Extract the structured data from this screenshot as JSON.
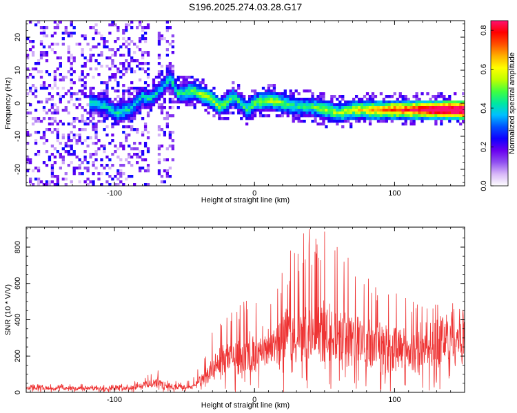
{
  "title": "S196.2025.274.03.28.G17",
  "chart_data": [
    {
      "type": "heatmap",
      "name": "spectrogram",
      "xlabel": "Height of straight line (km)",
      "ylabel": "Frequency (Hz)",
      "xlim": [
        -163,
        150
      ],
      "ylim": [
        -25,
        25
      ],
      "xticks": [
        -100,
        0,
        100
      ],
      "xtick_labels": [
        "-100",
        "0",
        "100"
      ],
      "yticks": [
        -20,
        -10,
        0,
        10,
        20
      ],
      "ytick_labels": [
        "-20",
        "-10",
        "0",
        "10",
        "20"
      ],
      "colorbar": {
        "label": "Normalized spectral amplitude",
        "range": [
          0,
          0.85
        ],
        "ticks": [
          0.0,
          0.2,
          0.4,
          0.6,
          0.8
        ],
        "tick_labels": [
          "0.0",
          "0.2",
          "0.4",
          "0.6",
          "0.8"
        ],
        "colormap": [
          "#ffffff",
          "#d8b8f8",
          "#9050f0",
          "#6a00f0",
          "#1000ff",
          "#0050ff",
          "#00c0ff",
          "#00e8a0",
          "#40ff40",
          "#c0ff00",
          "#ffff00",
          "#ffb000",
          "#ff5000",
          "#ff0000",
          "#ff1070"
        ]
      },
      "ridge": {
        "x": [
          -115,
          -105,
          -98,
          -90,
          -85,
          -80,
          -75,
          -70,
          -65,
          -60,
          -55,
          -50,
          -45,
          -40,
          -35,
          -30,
          -25,
          -20,
          -15,
          -10,
          -5,
          0,
          10,
          20,
          30,
          40,
          50,
          60,
          70,
          80,
          90,
          100,
          110,
          120,
          130,
          140,
          148
        ],
        "y": [
          0,
          -1,
          -3,
          -2,
          0,
          2,
          1,
          3,
          5,
          8,
          3,
          3,
          4,
          3,
          2,
          1,
          -1,
          0,
          2,
          0,
          -2,
          0,
          1,
          0,
          -1,
          -1,
          -2,
          -3,
          -2,
          -2,
          -2,
          -2,
          -2,
          -2,
          -2,
          -2,
          -2
        ]
      }
    },
    {
      "type": "line",
      "name": "snr",
      "xlabel": "Height of straight line (km)",
      "ylabel": "SNR (10 * V/V)",
      "xlim": [
        -163,
        150
      ],
      "ylim": [
        0,
        910
      ],
      "xticks": [
        -100,
        0,
        100
      ],
      "xtick_labels": [
        "-100",
        "0",
        "100"
      ],
      "yticks": [
        0,
        200,
        400,
        600,
        800
      ],
      "ytick_labels": [
        "0",
        "200",
        "400",
        "600",
        "800"
      ],
      "color": "#ee3333",
      "envelope": {
        "x": [
          -163,
          -110,
          -90,
          -80,
          -75,
          -70,
          -65,
          -55,
          -45,
          -35,
          -30,
          -25,
          -20,
          -10,
          0,
          10,
          20,
          30,
          40,
          50,
          60,
          70,
          80,
          90,
          100,
          110,
          120,
          125,
          130,
          140,
          150
        ],
        "base": [
          25,
          25,
          28,
          40,
          55,
          60,
          45,
          30,
          30,
          80,
          120,
          160,
          180,
          200,
          220,
          240,
          280,
          300,
          320,
          320,
          310,
          300,
          280,
          270,
          260,
          240,
          220,
          210,
          330,
          360,
          360
        ],
        "peak": [
          45,
          45,
          50,
          80,
          100,
          130,
          90,
          60,
          70,
          200,
          350,
          450,
          450,
          520,
          560,
          600,
          700,
          850,
          910,
          900,
          880,
          800,
          650,
          600,
          560,
          520,
          480,
          460,
          500,
          500,
          490
        ]
      }
    }
  ]
}
